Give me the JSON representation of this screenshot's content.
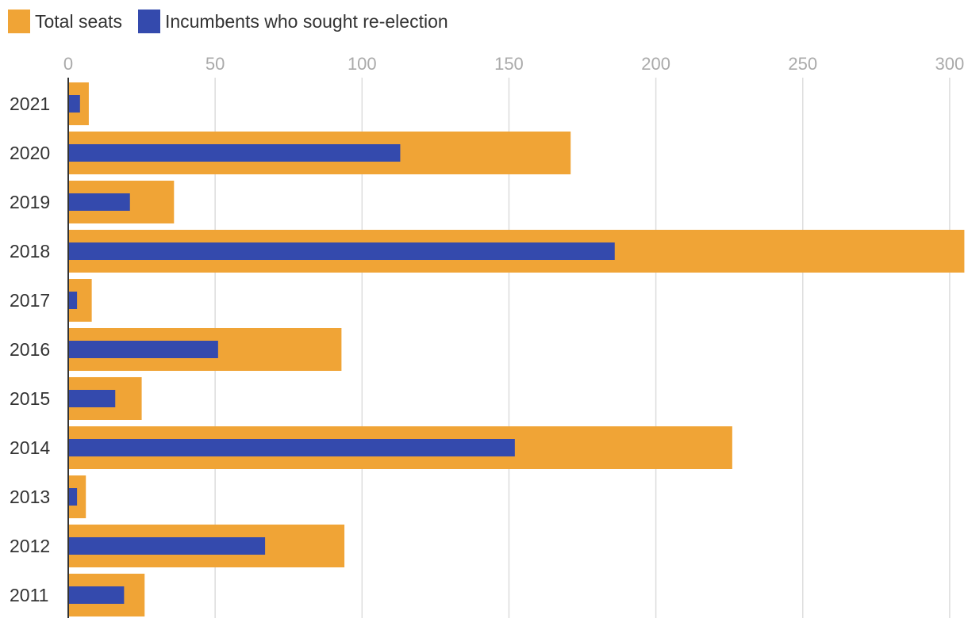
{
  "chart_data": {
    "type": "bar",
    "orientation": "horizontal",
    "categories": [
      "2021",
      "2020",
      "2019",
      "2018",
      "2017",
      "2016",
      "2015",
      "2014",
      "2013",
      "2012",
      "2011"
    ],
    "series": [
      {
        "name": "Total seats",
        "color": "#f0a436",
        "values": [
          7,
          171,
          36,
          305,
          8,
          93,
          25,
          226,
          6,
          94,
          26
        ]
      },
      {
        "name": "Incumbents who sought re-election",
        "color": "#344aad",
        "values": [
          4,
          113,
          21,
          186,
          3,
          51,
          16,
          152,
          3,
          67,
          19
        ]
      }
    ],
    "xlim": [
      0,
      303
    ],
    "xticks": [
      "0",
      "50",
      "100",
      "150",
      "200",
      "250",
      "300"
    ],
    "grid": true,
    "legend_position": "top-left"
  }
}
